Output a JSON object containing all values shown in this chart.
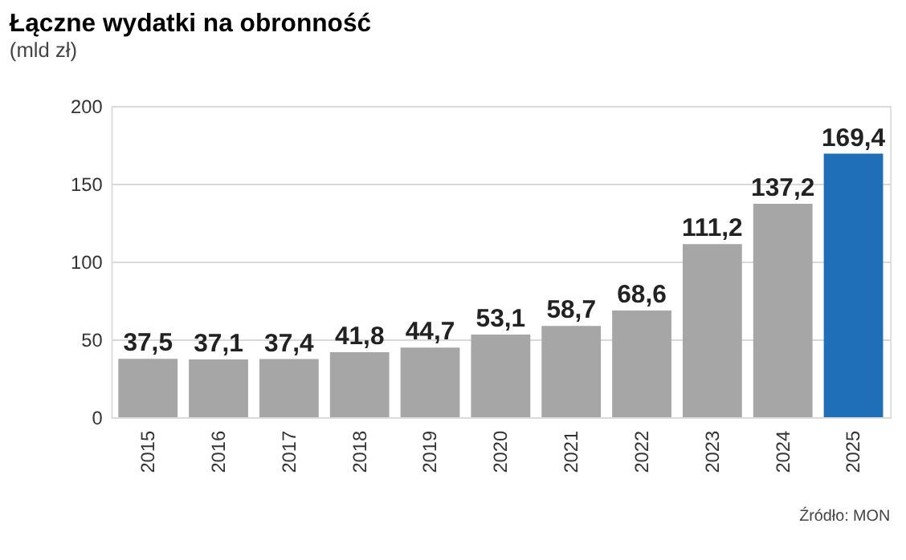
{
  "chart_data": {
    "type": "bar",
    "title": "Łączne wydatki na obronność",
    "subtitle": "(mld zł)",
    "categories": [
      "2015",
      "2016",
      "2017",
      "2018",
      "2019",
      "2020",
      "2021",
      "2022",
      "2023",
      "2024",
      "2025"
    ],
    "values": [
      37.5,
      37.1,
      37.4,
      41.8,
      44.7,
      53.1,
      58.7,
      68.6,
      111.2,
      137.2,
      169.4
    ],
    "colors": [
      "#a6a6a6",
      "#a6a6a6",
      "#a6a6a6",
      "#a6a6a6",
      "#a6a6a6",
      "#a6a6a6",
      "#a6a6a6",
      "#a6a6a6",
      "#a6a6a6",
      "#a6a6a6",
      "#1f6fb8"
    ],
    "value_labels": [
      "37,5",
      "37,1",
      "37,4",
      "41,8",
      "44,7",
      "53,1",
      "58,7",
      "68,6",
      "111,2",
      "137,2",
      "169,4"
    ],
    "ylim": [
      0,
      200
    ],
    "yticks": [
      0,
      50,
      100,
      150,
      200
    ],
    "grid": "y",
    "annotations": [
      "Źródło: MON"
    ]
  }
}
